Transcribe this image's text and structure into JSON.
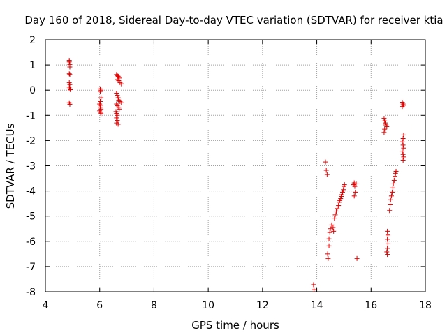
{
  "chart_data": {
    "type": "scatter",
    "title": "Day 160 of 2018, Sidereal Day-to-day VTEC variation (SDTVAR) for receiver ktia",
    "xlabel": "GPS time / hours",
    "ylabel": "SDTVAR / TECUs",
    "xlim": [
      4,
      18
    ],
    "ylim": [
      -8,
      2
    ],
    "xticks": [
      4,
      6,
      8,
      10,
      12,
      14,
      16,
      18
    ],
    "yticks": [
      -8,
      -7,
      -6,
      -5,
      -4,
      -3,
      -2,
      -1,
      0,
      1,
      2
    ],
    "grid": true,
    "marker": "+",
    "color": "#e00000",
    "series": [
      {
        "name": "SDTVAR",
        "points": [
          [
            4.88,
            1.18
          ],
          [
            4.88,
            1.12
          ],
          [
            4.9,
            1.02
          ],
          [
            4.9,
            0.92
          ],
          [
            4.88,
            0.65
          ],
          [
            4.9,
            0.62
          ],
          [
            4.88,
            0.3
          ],
          [
            4.9,
            0.22
          ],
          [
            4.88,
            0.12
          ],
          [
            4.9,
            0.05
          ],
          [
            4.92,
            0.02
          ],
          [
            4.88,
            -0.5
          ],
          [
            4.9,
            -0.56
          ],
          [
            6.02,
            0.05
          ],
          [
            6.05,
            0.0
          ],
          [
            6.02,
            -0.05
          ],
          [
            6.05,
            -0.3
          ],
          [
            6.02,
            -0.45
          ],
          [
            6.0,
            -0.55
          ],
          [
            6.03,
            -0.6
          ],
          [
            6.02,
            -0.68
          ],
          [
            6.05,
            -0.75
          ],
          [
            6.0,
            -0.82
          ],
          [
            6.03,
            -0.88
          ],
          [
            6.05,
            -0.93
          ],
          [
            6.62,
            0.62
          ],
          [
            6.65,
            0.58
          ],
          [
            6.68,
            0.55
          ],
          [
            6.7,
            0.52
          ],
          [
            6.72,
            0.48
          ],
          [
            6.65,
            0.42
          ],
          [
            6.7,
            0.38
          ],
          [
            6.75,
            0.3
          ],
          [
            6.8,
            0.25
          ],
          [
            6.62,
            -0.12
          ],
          [
            6.65,
            -0.2
          ],
          [
            6.68,
            -0.3
          ],
          [
            6.7,
            -0.4
          ],
          [
            6.75,
            -0.45
          ],
          [
            6.8,
            -0.5
          ],
          [
            6.62,
            -0.55
          ],
          [
            6.65,
            -0.62
          ],
          [
            6.7,
            -0.68
          ],
          [
            6.72,
            -0.75
          ],
          [
            6.6,
            -0.85
          ],
          [
            6.62,
            -0.92
          ],
          [
            6.65,
            -1.0
          ],
          [
            6.62,
            -1.1
          ],
          [
            6.65,
            -1.2
          ],
          [
            6.62,
            -1.3
          ],
          [
            6.68,
            -1.35
          ],
          [
            13.88,
            -7.72
          ],
          [
            13.9,
            -7.92
          ],
          [
            14.32,
            -2.85
          ],
          [
            14.35,
            -3.18
          ],
          [
            14.38,
            -3.35
          ],
          [
            14.4,
            -6.5
          ],
          [
            14.42,
            -6.68
          ],
          [
            14.45,
            -6.18
          ],
          [
            14.45,
            -5.9
          ],
          [
            14.48,
            -5.65
          ],
          [
            14.5,
            -5.5
          ],
          [
            14.55,
            -5.35
          ],
          [
            14.6,
            -5.45
          ],
          [
            14.62,
            -5.6
          ],
          [
            14.65,
            -5.08
          ],
          [
            14.68,
            -4.95
          ],
          [
            14.72,
            -4.8
          ],
          [
            14.75,
            -4.7
          ],
          [
            14.8,
            -4.58
          ],
          [
            14.82,
            -4.45
          ],
          [
            14.85,
            -4.38
          ],
          [
            14.88,
            -4.3
          ],
          [
            14.9,
            -4.22
          ],
          [
            14.92,
            -4.15
          ],
          [
            14.95,
            -4.05
          ],
          [
            14.98,
            -3.95
          ],
          [
            15.0,
            -3.82
          ],
          [
            15.02,
            -3.75
          ],
          [
            15.35,
            -3.75
          ],
          [
            15.38,
            -3.68
          ],
          [
            15.4,
            -3.82
          ],
          [
            15.42,
            -4.05
          ],
          [
            15.38,
            -4.2
          ],
          [
            15.45,
            -3.72
          ],
          [
            15.48,
            -6.68
          ],
          [
            16.48,
            -1.12
          ],
          [
            16.5,
            -1.22
          ],
          [
            16.52,
            -1.3
          ],
          [
            16.55,
            -1.38
          ],
          [
            16.58,
            -1.45
          ],
          [
            16.5,
            -1.55
          ],
          [
            16.48,
            -1.68
          ],
          [
            16.6,
            -5.6
          ],
          [
            16.62,
            -5.75
          ],
          [
            16.6,
            -5.92
          ],
          [
            16.62,
            -6.1
          ],
          [
            16.6,
            -6.28
          ],
          [
            16.58,
            -6.42
          ],
          [
            16.6,
            -6.52
          ],
          [
            16.68,
            -4.78
          ],
          [
            16.7,
            -4.55
          ],
          [
            16.72,
            -4.35
          ],
          [
            16.75,
            -4.2
          ],
          [
            16.78,
            -4.05
          ],
          [
            16.8,
            -3.88
          ],
          [
            16.82,
            -3.72
          ],
          [
            16.85,
            -3.58
          ],
          [
            16.88,
            -3.42
          ],
          [
            16.9,
            -3.3
          ],
          [
            16.92,
            -3.22
          ],
          [
            17.15,
            -0.48
          ],
          [
            17.18,
            -0.55
          ],
          [
            17.2,
            -0.6
          ],
          [
            17.15,
            -0.65
          ],
          [
            17.2,
            -1.78
          ],
          [
            17.18,
            -1.92
          ],
          [
            17.15,
            -2.05
          ],
          [
            17.18,
            -2.18
          ],
          [
            17.2,
            -2.3
          ],
          [
            17.15,
            -2.42
          ],
          [
            17.18,
            -2.55
          ],
          [
            17.2,
            -2.65
          ],
          [
            17.18,
            -2.78
          ]
        ]
      }
    ]
  }
}
